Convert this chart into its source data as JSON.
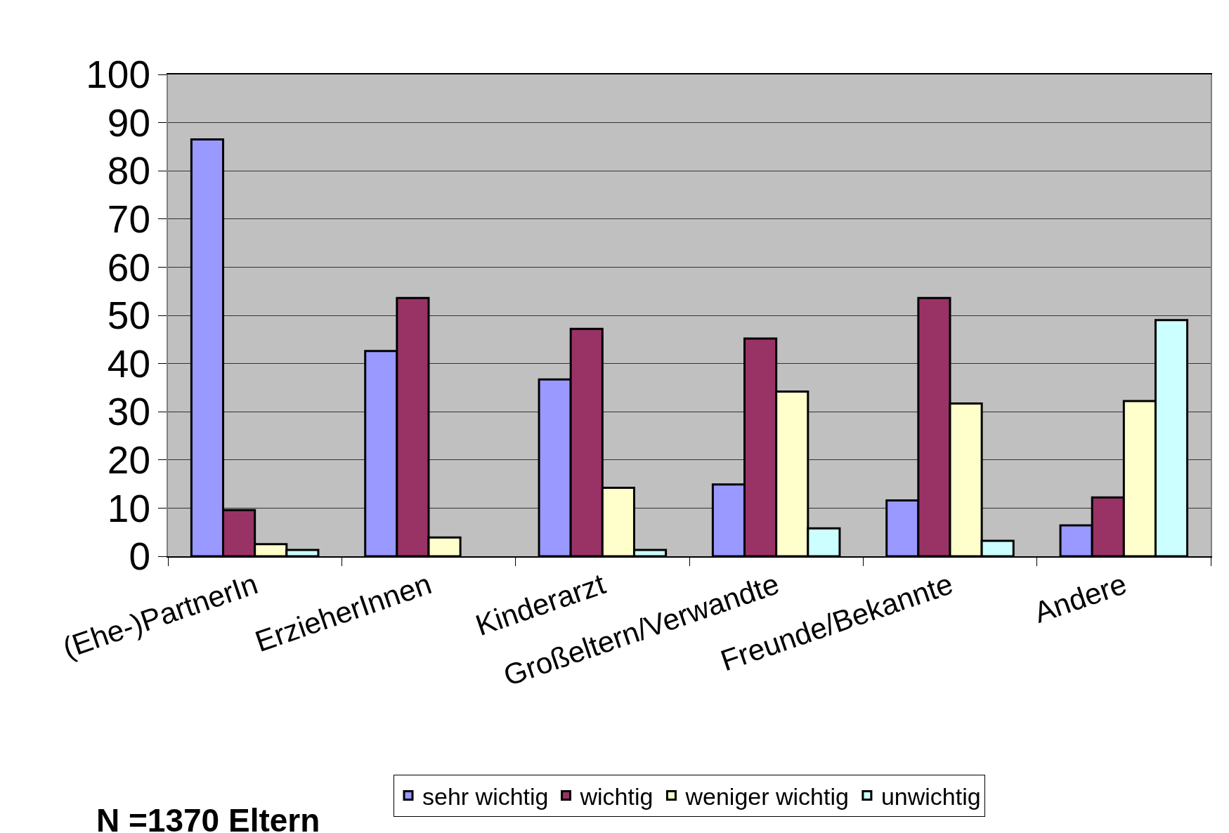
{
  "chart_data": {
    "type": "bar",
    "categories": [
      "(Ehe-)PartnerIn",
      "ErzieherInnen",
      "Kinderarzt",
      "Großeltern/Verwandte",
      "Freunde/Bekannte",
      "Andere"
    ],
    "series": [
      {
        "name": "sehr wichtig",
        "color": "#9999ff",
        "values": [
          86.5,
          42.6,
          36.7,
          14.9,
          11.6,
          6.4
        ]
      },
      {
        "name": "wichtig",
        "color": "#993366",
        "values": [
          9.6,
          53.6,
          47.2,
          45.2,
          53.6,
          12.2
        ]
      },
      {
        "name": "weniger wichtig",
        "color": "#ffffcc",
        "values": [
          2.5,
          3.9,
          14.2,
          34.2,
          31.7,
          32.2
        ]
      },
      {
        "name": "unwichtig",
        "color": "#ccffff",
        "values": [
          1.3,
          null,
          1.3,
          5.8,
          3.2,
          49.0
        ]
      }
    ],
    "ylim": [
      0,
      100
    ],
    "yticks": [
      0,
      10,
      20,
      30,
      40,
      50,
      60,
      70,
      80,
      90,
      100
    ],
    "grid": "y",
    "legend": "bottom",
    "annotations": [
      "N =1370 Eltern"
    ]
  }
}
